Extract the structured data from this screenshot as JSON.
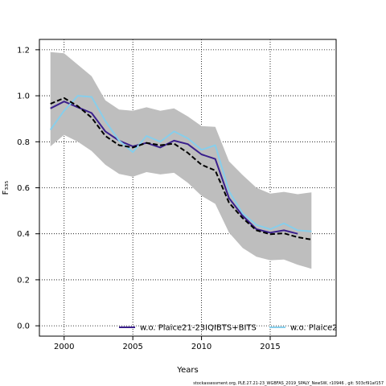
{
  "chart_data": {
    "type": "line",
    "xlabel": "Years",
    "ylabel": "F₃₃₅",
    "xlim": [
      1998.2,
      2019.8
    ],
    "ylim": [
      -0.045,
      1.245
    ],
    "xticks": [
      2000,
      2005,
      2010,
      2015
    ],
    "yticks": [
      0.0,
      0.2,
      0.4,
      0.6,
      0.8,
      1.0,
      1.2
    ],
    "ytick_labels": [
      "0.0",
      "0.2",
      "0.4",
      "0.6",
      "0.8",
      "1.0",
      "1.2"
    ],
    "grid": "dotted",
    "x": [
      1999,
      2000,
      2001,
      2002,
      2003,
      2004,
      2005,
      2006,
      2007,
      2008,
      2009,
      2010,
      2011,
      2012,
      2013,
      2014,
      2015,
      2016,
      2017,
      2018
    ],
    "band": {
      "color": "#bebebe",
      "upper": [
        1.19,
        1.185,
        1.135,
        1.085,
        0.98,
        0.94,
        0.935,
        0.95,
        0.935,
        0.945,
        0.91,
        0.868,
        0.865,
        0.715,
        0.655,
        0.6,
        0.575,
        0.582,
        0.572,
        0.58
      ],
      "lower": [
        0.78,
        0.83,
        0.8,
        0.76,
        0.7,
        0.66,
        0.648,
        0.668,
        0.658,
        0.665,
        0.622,
        0.565,
        0.53,
        0.405,
        0.338,
        0.3,
        0.285,
        0.288,
        0.265,
        0.248
      ]
    },
    "series": [
      {
        "name": "",
        "color": "#000000",
        "dash": "dashed",
        "values": [
          0.965,
          0.99,
          0.955,
          0.905,
          0.825,
          0.785,
          0.775,
          0.795,
          0.785,
          0.792,
          0.752,
          0.7,
          0.675,
          0.535,
          0.468,
          0.415,
          0.398,
          0.402,
          0.385,
          0.375
        ]
      },
      {
        "name": "w.o. Plaice21-23IQIBTS+BITS",
        "color": "#3a1f8c",
        "dash": "solid",
        "values": [
          0.945,
          0.975,
          0.95,
          0.925,
          0.845,
          0.805,
          0.78,
          0.795,
          0.775,
          0.805,
          0.79,
          0.745,
          0.725,
          0.555,
          0.478,
          0.42,
          0.405,
          0.415,
          0.4,
          null
        ]
      },
      {
        "name": "w.o. Plaice2",
        "color": "#87ceeb",
        "dash": "solid",
        "values": [
          0.852,
          0.935,
          1.0,
          0.995,
          0.89,
          0.805,
          0.755,
          0.825,
          0.8,
          0.845,
          0.815,
          0.765,
          0.785,
          0.585,
          0.488,
          0.438,
          0.42,
          0.445,
          0.415,
          0.41
        ]
      }
    ],
    "legend": "bottom"
  },
  "footer": "stockassessment.org, PLE.27.21-23_WGBFAS_2019_SPALY_NewSW, r10946 , git: 503cf91af157"
}
